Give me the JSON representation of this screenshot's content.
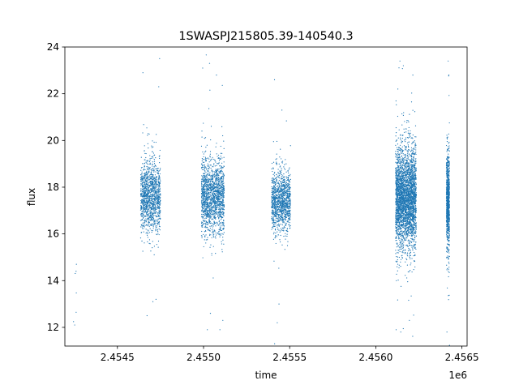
{
  "chart_data": {
    "type": "scatter",
    "title": "1SWASPJ215805.39-140540.3",
    "xlabel": "time",
    "ylabel": "flux",
    "x_offset_label": "1e6",
    "xlim": [
      2454195,
      2456530
    ],
    "ylim": [
      11.2,
      24.0
    ],
    "x_ticks": [
      2454500,
      2455000,
      2455500,
      2456000,
      2456500
    ],
    "x_tick_labels": [
      "2.4545",
      "2.4550",
      "2.4555",
      "2.4560",
      "2.4565"
    ],
    "y_ticks": [
      12,
      14,
      16,
      18,
      20,
      22,
      24
    ],
    "y_tick_labels": [
      "12",
      "14",
      "16",
      "18",
      "20",
      "22",
      "24"
    ],
    "grid": false,
    "marker_color": "#1f77b4",
    "series": [
      {
        "clusters": [
          {
            "x_start": 2454245,
            "x_end": 2454262,
            "y_center": 13.9,
            "y_spread": 0.6,
            "count": 4
          },
          {
            "x_start": 2454635,
            "x_end": 2454750,
            "y_center": 17.6,
            "y_spread": 0.75,
            "count": 1300
          },
          {
            "x_start": 2454988,
            "x_end": 2455120,
            "y_center": 17.6,
            "y_spread": 0.8,
            "count": 1600
          },
          {
            "x_start": 2455395,
            "x_end": 2455505,
            "y_center": 17.4,
            "y_spread": 0.65,
            "count": 1200
          },
          {
            "x_start": 2456115,
            "x_end": 2456235,
            "y_center": 17.6,
            "y_spread": 1.05,
            "count": 3200
          },
          {
            "x_start": 2456410,
            "x_end": 2456428,
            "y_center": 17.4,
            "y_spread": 1.0,
            "count": 900
          }
        ],
        "outlier_points": [
          [
            2454252,
            12.1
          ],
          [
            2454260,
            14.4
          ],
          [
            2454262,
            14.7
          ],
          [
            2454648,
            22.9
          ],
          [
            2454672,
            12.5
          ],
          [
            2454706,
            13.1
          ],
          [
            2454724,
            13.2
          ],
          [
            2454745,
            23.5
          ],
          [
            2454740,
            22.3
          ],
          [
            2454995,
            23.1
          ],
          [
            2455022,
            11.9
          ],
          [
            2455035,
            23.3
          ],
          [
            2455040,
            12.6
          ],
          [
            2455075,
            22.8
          ],
          [
            2455095,
            11.9
          ],
          [
            2455112,
            12.3
          ],
          [
            2455412,
            22.6
          ],
          [
            2455428,
            12.2
          ],
          [
            2455438,
            13.0
          ],
          [
            2455455,
            21.3
          ],
          [
            2456118,
            11.9
          ],
          [
            2456140,
            23.4
          ],
          [
            2456145,
            11.8
          ],
          [
            2456160,
            23.2
          ],
          [
            2456195,
            12.3
          ],
          [
            2456215,
            22.8
          ],
          [
            2456413,
            11.8
          ],
          [
            2456420,
            23.4
          ],
          [
            2456424,
            22.8
          ]
        ]
      }
    ]
  }
}
